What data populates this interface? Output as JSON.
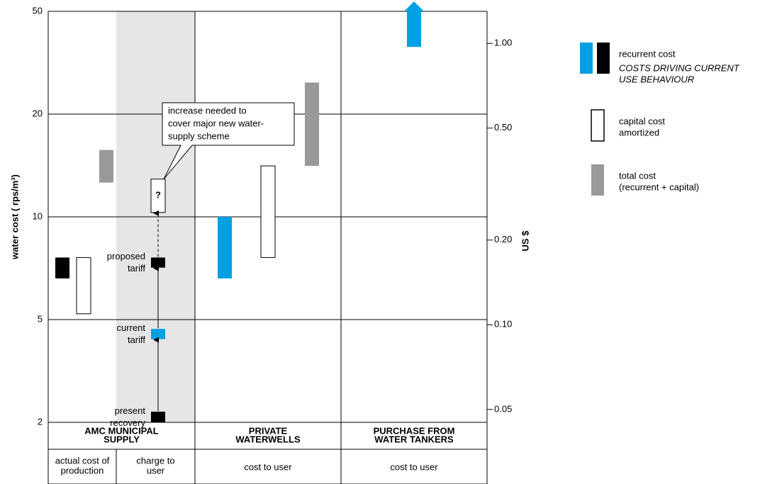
{
  "chart_data": {
    "type": "floating_bar",
    "ylabel": "water cost ( rps/m³)",
    "y2label": "US $",
    "yscale": "log",
    "ylim": [
      2,
      50
    ],
    "yticks": [
      2,
      5,
      10,
      20,
      50
    ],
    "y2scale": "log",
    "y2lim": [
      0.045,
      1.3
    ],
    "y2ticks": [
      0.05,
      {
        "value": 0.1,
        "label": "0.10"
      },
      {
        "value": 0.2,
        "label": "0.20"
      },
      {
        "value": 0.5,
        "label": "0.50"
      },
      {
        "value": 1,
        "label": "1.00"
      }
    ],
    "grid": true,
    "shade_color": "#e6e6e6",
    "columns": [
      {
        "label": [
          "AMC MUNICIPAL",
          "SUPPLY"
        ],
        "subcolumns": [
          {
            "label": [
              "actual cost of",
              "production"
            ],
            "bars": [
              {
                "low": 6.6,
                "high": 7.6,
                "color": "#000000"
              },
              {
                "low": 5.2,
                "high": 7.6,
                "color": "#ffffff"
              },
              {
                "low": 12.6,
                "high": 15.7,
                "color": "#999999"
              }
            ]
          },
          {
            "label": [
              "charge to",
              "user"
            ],
            "shaded": true,
            "bars": [
              {
                "low": 2,
                "high": 2.2,
                "color": "#000000",
                "label": [
                  "present",
                  "recovery"
                ]
              },
              {
                "low": 4.2,
                "high": 4.6,
                "color": "#00a0e3",
                "label": [
                  "current",
                  "tariff"
                ],
                "link": "solid"
              },
              {
                "low": 7.1,
                "high": 7.6,
                "color": "#000000",
                "label": [
                  "proposed",
                  "tariff"
                ],
                "link": "solid"
              },
              {
                "low": 10.3,
                "high": 12.9,
                "color": "#ffffff",
                "text": "?",
                "link": "dashed",
                "callout": [
                  "increase needed to",
                  "cover major new water-",
                  "supply scheme"
                ]
              }
            ]
          }
        ]
      },
      {
        "label": [
          "PRIVATE",
          "WATERWELLS"
        ],
        "subcolumns": [
          {
            "label": [
              "cost to user"
            ],
            "bars": [
              {
                "low": 6.6,
                "high": 10,
                "color": "#00a0e3"
              },
              {
                "low": 7.6,
                "high": 14.1,
                "color": "#ffffff"
              },
              {
                "low": 14.1,
                "high": 26.5,
                "color": "#999999"
              }
            ]
          }
        ]
      },
      {
        "label": [
          "PURCHASE FROM",
          "WATER TANKERS"
        ],
        "subcolumns": [
          {
            "label": [
              "cost to user"
            ],
            "bars": [
              {
                "low": 36.4,
                "high": 50,
                "color": "#00a0e3",
                "arrow": "up"
              }
            ]
          }
        ]
      }
    ],
    "legend": [
      {
        "colors": [
          "#00a0e3",
          "#000000"
        ],
        "label": [
          "recurrent cost"
        ],
        "note": [
          "COSTS DRIVING CURRENT",
          "USE BEHAVIOUR"
        ],
        "note_color": "#00a0e3"
      },
      {
        "colors": [
          "#ffffff"
        ],
        "label": [
          "capital cost",
          "amortized"
        ]
      },
      {
        "colors": [
          "#999999"
        ],
        "label": [
          "total cost",
          "(recurrent + capital)"
        ]
      }
    ]
  }
}
